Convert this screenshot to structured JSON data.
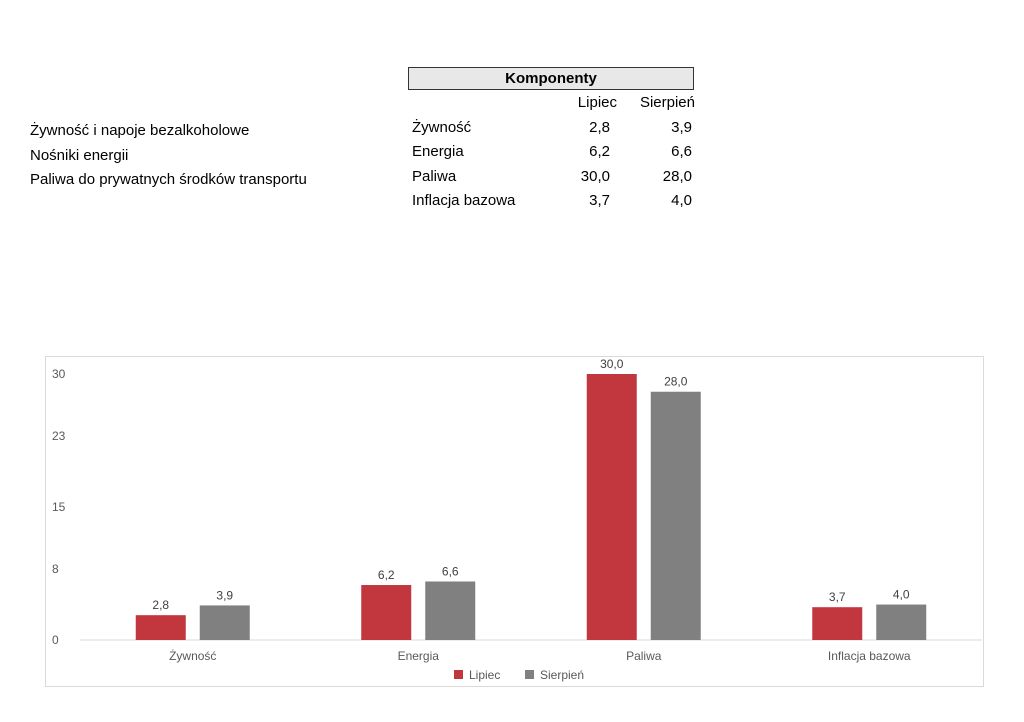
{
  "descriptions": [
    "Żywność i napoje bezalkoholowe",
    "Nośniki energii",
    "Paliwa do prywatnych środków transportu"
  ],
  "table": {
    "title": "Komponenty",
    "headers": [
      "",
      "Lipiec",
      "Sierpień"
    ],
    "rows": [
      [
        "Żywność",
        "2,8",
        "3,9"
      ],
      [
        "Energia",
        "6,2",
        "6,6"
      ],
      [
        "Paliwa",
        "30,0",
        "28,0"
      ],
      [
        "Inflacja bazowa",
        "3,7",
        "4,0"
      ]
    ]
  },
  "chart_data": {
    "type": "bar",
    "categories": [
      "Żywność",
      "Energia",
      "Paliwa",
      "Inflacja bazowa"
    ],
    "series": [
      {
        "name": "Lipiec",
        "values": [
          2.8,
          6.2,
          30.0,
          3.7
        ],
        "labels": [
          "2,8",
          "6,2",
          "30,0",
          "3,7"
        ],
        "color": "#c1373d"
      },
      {
        "name": "Sierpień",
        "values": [
          3.9,
          6.6,
          28.0,
          4.0
        ],
        "labels": [
          "3,9",
          "6,6",
          "28,0",
          "4,0"
        ],
        "color": "#808080"
      }
    ],
    "y_ticks": [
      0,
      8,
      15,
      23,
      30
    ],
    "ylim": [
      0,
      30
    ],
    "title": "",
    "xlabel": "",
    "ylabel": "",
    "legend": "bottom",
    "grid": false
  }
}
